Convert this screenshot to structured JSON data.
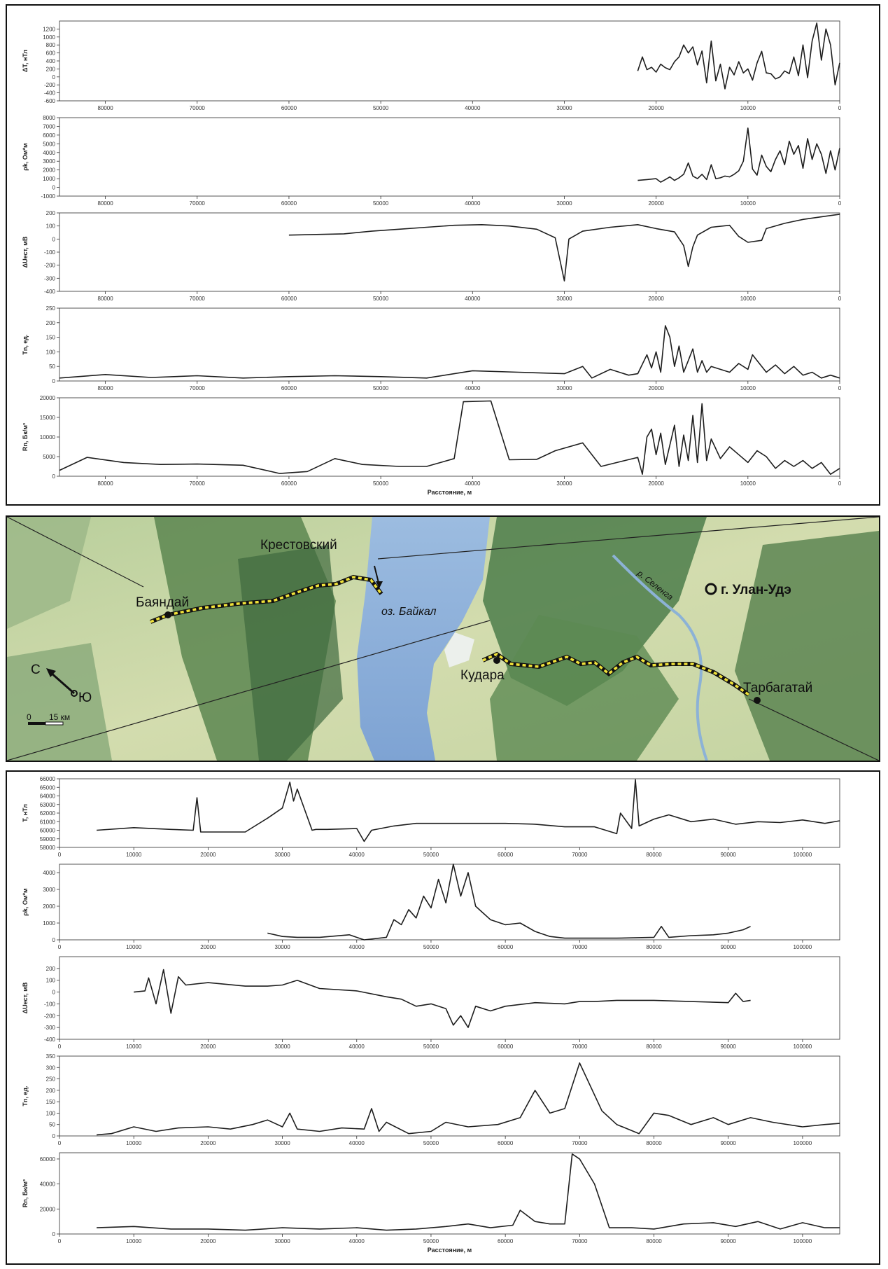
{
  "top_panel": {
    "x_title": "Расстояние, м",
    "x_ticks": [
      "80000",
      "70000",
      "60000",
      "50000",
      "40000",
      "30000",
      "20000",
      "10000",
      "0"
    ]
  },
  "bottom_panel": {
    "x_title": "Расстояние, м",
    "x_ticks": [
      "0",
      "10000",
      "20000",
      "30000",
      "40000",
      "50000",
      "60000",
      "70000",
      "80000",
      "90000",
      "100000"
    ]
  },
  "map": {
    "places": {
      "bayanday": "Баяндай",
      "krestovsky": "Крестовский",
      "lake": "оз. Байкал",
      "ulan_ude": "г. Улан-Удэ",
      "kudara": "Кудара",
      "tarbagatay": "Тарбагатай",
      "river": "р. Селенга"
    },
    "compass": {
      "north": "С",
      "south": "Ю"
    },
    "scale": {
      "start": "0",
      "end": "15 км"
    },
    "colors": {
      "water": "#8aaed8",
      "land": "#c9d8a6",
      "forest": "#4f7a48",
      "route": "#f0e23a"
    }
  },
  "chart_data": [
    {
      "id": "top-dT",
      "type": "line",
      "xaxis": "reversed",
      "ylabel": "ΔT, нТл",
      "xlim": [
        85000,
        0
      ],
      "ylim": [
        -600,
        1400
      ],
      "yticks": [
        "1200",
        "1000",
        "800",
        "600",
        "400",
        "200",
        "0",
        "-200",
        "-400",
        "-600"
      ],
      "x": [
        22000,
        21500,
        21000,
        20500,
        20000,
        19500,
        19000,
        18500,
        18000,
        17500,
        17000,
        16500,
        16000,
        15500,
        15000,
        14500,
        14000,
        13500,
        13000,
        12500,
        12000,
        11500,
        11000,
        10500,
        10000,
        9500,
        9000,
        8500,
        8000,
        7500,
        7000,
        6500,
        6000,
        5500,
        5000,
        4500,
        4000,
        3500,
        3000,
        2500,
        2000,
        1500,
        1000,
        500,
        0
      ],
      "y": [
        150,
        500,
        180,
        240,
        120,
        320,
        230,
        180,
        380,
        500,
        800,
        600,
        750,
        300,
        650,
        -150,
        900,
        -100,
        320,
        -300,
        240,
        50,
        380,
        100,
        200,
        -80,
        350,
        640,
        100,
        80,
        -50,
        0,
        150,
        80,
        500,
        30,
        800,
        -20,
        900,
        1350,
        420,
        1200,
        800,
        -200,
        350
      ]
    },
    {
      "id": "top-rho",
      "type": "line",
      "xaxis": "reversed",
      "ylabel": "ρk, Ом*м",
      "xlim": [
        85000,
        0
      ],
      "ylim": [
        -1000,
        8000
      ],
      "yticks": [
        "8000",
        "7000",
        "6000",
        "5000",
        "4000",
        "3000",
        "2000",
        "1000",
        "0",
        "-1000"
      ],
      "x": [
        22000,
        21000,
        20000,
        19500,
        19000,
        18500,
        18000,
        17500,
        17000,
        16500,
        16000,
        15500,
        15000,
        14500,
        14000,
        13500,
        13000,
        12500,
        12000,
        11500,
        11000,
        10500,
        10000,
        9500,
        9000,
        8500,
        8000,
        7500,
        7000,
        6500,
        6000,
        5500,
        5000,
        4500,
        4000,
        3500,
        3000,
        2500,
        2000,
        1500,
        1000,
        500,
        0
      ],
      "y": [
        800,
        900,
        1000,
        600,
        900,
        1200,
        800,
        1100,
        1500,
        2800,
        1300,
        1000,
        1500,
        900,
        2600,
        1000,
        1100,
        1300,
        1200,
        1500,
        1900,
        3000,
        6800,
        2100,
        1400,
        3700,
        2400,
        1800,
        3200,
        4200,
        2600,
        5300,
        3800,
        4800,
        2200,
        5600,
        3200,
        5000,
        3800,
        1600,
        4200,
        2000,
        4500
      ]
    },
    {
      "id": "top-dU",
      "type": "line",
      "xaxis": "reversed",
      "ylabel": "ΔUест, мВ",
      "xlim": [
        85000,
        0
      ],
      "ylim": [
        -400,
        200
      ],
      "yticks": [
        "200",
        "100",
        "0",
        "-100",
        "-200",
        "-300",
        "-400"
      ],
      "x": [
        60000,
        57000,
        54000,
        51000,
        48000,
        45000,
        42000,
        39000,
        36000,
        33000,
        31000,
        30000,
        29500,
        28000,
        25000,
        22000,
        20000,
        18000,
        17000,
        16500,
        16000,
        15500,
        14000,
        12000,
        11000,
        10000,
        8500,
        8000,
        6000,
        4000,
        2000,
        0
      ],
      "y": [
        30,
        35,
        40,
        60,
        75,
        90,
        105,
        110,
        100,
        75,
        10,
        -320,
        0,
        60,
        90,
        110,
        80,
        55,
        -50,
        -210,
        -60,
        30,
        90,
        105,
        20,
        -25,
        -10,
        80,
        120,
        150,
        170,
        190
      ]
    },
    {
      "id": "top-Tn",
      "type": "line",
      "xaxis": "reversed",
      "ylabel": "Tn, ед.",
      "xlim": [
        85000,
        0
      ],
      "ylim": [
        0,
        250
      ],
      "yticks": [
        "250",
        "200",
        "150",
        "100",
        "50",
        "0"
      ],
      "x": [
        85000,
        80000,
        75000,
        70000,
        65000,
        60000,
        55000,
        50000,
        45000,
        40000,
        35000,
        30000,
        28000,
        27000,
        25000,
        23000,
        22000,
        21000,
        20500,
        20000,
        19500,
        19000,
        18500,
        18000,
        17500,
        17000,
        16500,
        16000,
        15500,
        15000,
        14500,
        14000,
        13000,
        12000,
        11000,
        10000,
        9500,
        9000,
        8000,
        7000,
        6000,
        5000,
        4000,
        3000,
        2000,
        1000,
        0
      ],
      "y": [
        10,
        22,
        12,
        18,
        10,
        15,
        18,
        15,
        10,
        35,
        30,
        25,
        50,
        10,
        40,
        20,
        25,
        90,
        45,
        100,
        30,
        190,
        150,
        50,
        120,
        30,
        70,
        110,
        30,
        70,
        30,
        50,
        40,
        30,
        60,
        40,
        90,
        70,
        30,
        55,
        25,
        50,
        20,
        30,
        10,
        20,
        10
      ]
    },
    {
      "id": "top-Rn",
      "type": "line",
      "xaxis": "reversed",
      "ylabel": "Rn, Бк/м³",
      "xlim": [
        85000,
        0
      ],
      "ylim": [
        0,
        20000
      ],
      "yticks": [
        "20000",
        "15000",
        "10000",
        "5000",
        "0"
      ],
      "x": [
        85000,
        82000,
        78000,
        74000,
        70000,
        65000,
        61000,
        58000,
        55000,
        52000,
        48000,
        45000,
        42000,
        41000,
        38000,
        36000,
        33000,
        31000,
        28000,
        26000,
        22000,
        21500,
        21000,
        20500,
        20000,
        19500,
        19000,
        18000,
        17500,
        17000,
        16500,
        16000,
        15500,
        15000,
        14500,
        14000,
        13000,
        12000,
        11000,
        10000,
        9000,
        8000,
        7000,
        6000,
        5000,
        4000,
        3000,
        2000,
        1000,
        0
      ],
      "y": [
        1500,
        4800,
        3500,
        3000,
        3100,
        2800,
        700,
        1200,
        4500,
        3000,
        2500,
        2500,
        4500,
        19000,
        19200,
        4200,
        4300,
        6500,
        8500,
        2500,
        4800,
        500,
        10000,
        12000,
        5500,
        11000,
        3000,
        13000,
        2500,
        10500,
        4000,
        15500,
        3500,
        18500,
        4000,
        9500,
        4500,
        7500,
        5500,
        3500,
        6500,
        5000,
        2000,
        4000,
        2500,
        4000,
        2000,
        3500,
        500,
        2000
      ]
    },
    {
      "id": "bot-T",
      "type": "line",
      "ylabel": "T, нТл",
      "xlim": [
        0,
        105000
      ],
      "ylim": [
        58000,
        66000
      ],
      "yticks": [
        "66000",
        "65000",
        "64000",
        "63000",
        "62000",
        "61000",
        "60000",
        "59000",
        "58000"
      ],
      "x": [
        5000,
        10000,
        15000,
        18000,
        18500,
        19000,
        25000,
        28000,
        30000,
        31000,
        31500,
        32000,
        33000,
        34000,
        34500,
        36000,
        40000,
        41000,
        42000,
        45000,
        48000,
        52000,
        56000,
        60000,
        64000,
        68000,
        72000,
        75000,
        75500,
        77000,
        77500,
        78000,
        80000,
        82000,
        85000,
        88000,
        91000,
        94000,
        97000,
        100000,
        103000,
        105000
      ],
      "y": [
        60000,
        60300,
        60100,
        60000,
        63800,
        59800,
        59800,
        61400,
        62600,
        65600,
        63400,
        64800,
        62400,
        60000,
        60100,
        60100,
        60200,
        58700,
        60000,
        60500,
        60800,
        60800,
        60800,
        60800,
        60700,
        60400,
        60400,
        59600,
        62000,
        60200,
        65900,
        60500,
        61300,
        61800,
        61000,
        61300,
        60700,
        61000,
        60900,
        61200,
        60800,
        61100
      ]
    },
    {
      "id": "bot-rho",
      "type": "line",
      "ylabel": "ρk, Ом*м",
      "xlim": [
        0,
        105000
      ],
      "ylim": [
        0,
        4500
      ],
      "yticks": [
        "4000",
        "3000",
        "2000",
        "1000",
        "0"
      ],
      "x": [
        28000,
        30000,
        32000,
        35000,
        39000,
        41000,
        44000,
        45000,
        46000,
        47000,
        48000,
        49000,
        50000,
        51000,
        52000,
        53000,
        54000,
        55000,
        56000,
        57000,
        58000,
        60000,
        62000,
        64000,
        66000,
        68000,
        70000,
        75000,
        80000,
        81000,
        82000,
        85000,
        88000,
        90000,
        92000,
        93000
      ],
      "y": [
        400,
        200,
        150,
        150,
        300,
        0,
        150,
        1200,
        900,
        1800,
        1300,
        2600,
        1900,
        3600,
        2200,
        4500,
        2600,
        4000,
        2000,
        1600,
        1200,
        900,
        1000,
        500,
        200,
        100,
        100,
        100,
        150,
        800,
        150,
        250,
        300,
        400,
        600,
        800
      ]
    },
    {
      "id": "bot-dU",
      "type": "line",
      "ylabel": "ΔUест, мВ",
      "xlim": [
        0,
        105000
      ],
      "ylim": [
        -400,
        300
      ],
      "yticks": [
        "200",
        "100",
        "0",
        "-100",
        "-200",
        "-300",
        "-400"
      ],
      "x": [
        10000,
        11500,
        12000,
        13000,
        14000,
        15000,
        16000,
        17000,
        20000,
        25000,
        28000,
        30000,
        32000,
        35000,
        40000,
        44000,
        46000,
        48000,
        50000,
        52000,
        53000,
        54000,
        55000,
        56000,
        58000,
        60000,
        64000,
        68000,
        70000,
        72000,
        75000,
        80000,
        85000,
        90000,
        91000,
        92000,
        93000
      ],
      "y": [
        0,
        10,
        120,
        -100,
        190,
        -180,
        130,
        60,
        80,
        50,
        50,
        60,
        100,
        30,
        10,
        -40,
        -60,
        -120,
        -100,
        -140,
        -280,
        -200,
        -300,
        -120,
        -160,
        -120,
        -90,
        -100,
        -80,
        -80,
        -70,
        -70,
        -80,
        -90,
        -10,
        -80,
        -70
      ]
    },
    {
      "id": "bot-Tn",
      "type": "line",
      "ylabel": "Tn, ед.",
      "xlim": [
        0,
        105000
      ],
      "ylim": [
        0,
        350
      ],
      "yticks": [
        "350",
        "300",
        "250",
        "200",
        "150",
        "100",
        "50",
        "0"
      ],
      "x": [
        5000,
        7000,
        10000,
        13000,
        16000,
        20000,
        23000,
        26000,
        28000,
        30000,
        31000,
        32000,
        35000,
        38000,
        41000,
        42000,
        43000,
        44000,
        47000,
        50000,
        52000,
        55000,
        59000,
        62000,
        64000,
        66000,
        68000,
        70000,
        73000,
        75000,
        78000,
        80000,
        82000,
        85000,
        88000,
        90000,
        93000,
        96000,
        100000,
        103000,
        105000
      ],
      "y": [
        5,
        10,
        40,
        20,
        35,
        40,
        30,
        50,
        70,
        40,
        100,
        30,
        20,
        35,
        30,
        120,
        20,
        60,
        10,
        20,
        60,
        40,
        50,
        80,
        200,
        100,
        120,
        320,
        110,
        50,
        10,
        100,
        90,
        50,
        80,
        50,
        80,
        60,
        40,
        50,
        55
      ]
    },
    {
      "id": "bot-Rn",
      "type": "line",
      "ylabel": "Rn, Бк/м³",
      "xlim": [
        0,
        105000
      ],
      "ylim": [
        0,
        65000
      ],
      "yticks": [
        "60000",
        "40000",
        "20000",
        "0"
      ],
      "x": [
        5000,
        10000,
        15000,
        20000,
        25000,
        30000,
        35000,
        40000,
        44000,
        48000,
        52000,
        55000,
        58000,
        61000,
        62000,
        64000,
        66000,
        68000,
        69000,
        70000,
        72000,
        74000,
        77000,
        80000,
        84000,
        88000,
        91000,
        94000,
        97000,
        100000,
        103000,
        105000
      ],
      "y": [
        5000,
        6000,
        4000,
        4000,
        3000,
        5000,
        4000,
        5000,
        3000,
        4000,
        6000,
        8000,
        5000,
        7000,
        19000,
        10000,
        8000,
        8000,
        64000,
        60000,
        40000,
        5000,
        5000,
        4000,
        8000,
        9000,
        6000,
        10000,
        4000,
        9000,
        5000,
        5000
      ]
    }
  ]
}
